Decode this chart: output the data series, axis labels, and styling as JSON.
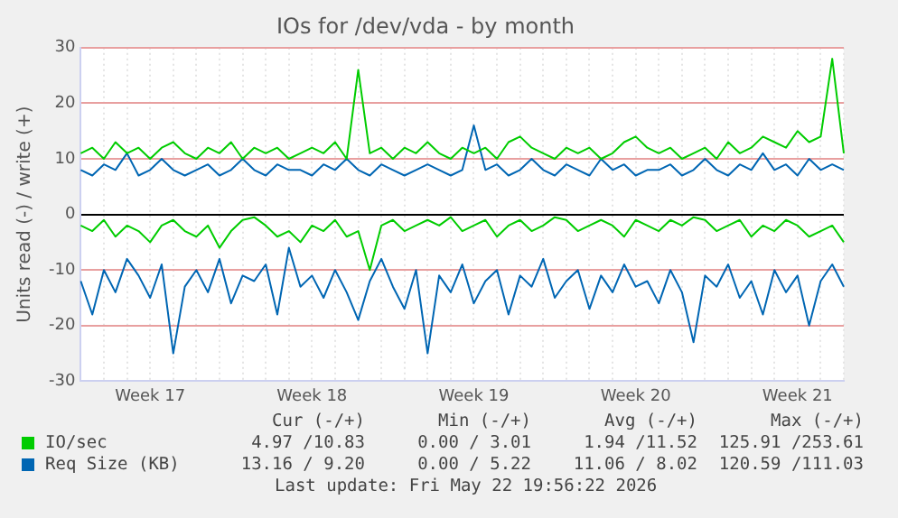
{
  "chart_data": {
    "type": "line",
    "title": "IOs for /dev/vda - by month",
    "ylabel": "Units read (-) / write (+)",
    "categories": [
      null,
      null,
      null,
      null,
      null,
      null,
      "Week 17",
      null,
      null,
      null,
      null,
      null,
      null,
      null,
      null,
      null,
      null,
      null,
      null,
      null,
      "Week 18",
      null,
      null,
      null,
      null,
      null,
      null,
      null,
      null,
      null,
      null,
      null,
      null,
      null,
      "Week 19",
      null,
      null,
      null,
      null,
      null,
      null,
      null,
      null,
      null,
      null,
      null,
      null,
      null,
      "Week 20",
      null,
      null,
      null,
      null,
      null,
      null,
      null,
      null,
      null,
      null,
      null,
      null,
      null,
      "Week 21",
      null,
      null,
      null,
      null
    ],
    "ylim": [
      -30,
      30
    ],
    "yticks": [
      -30,
      -20,
      -10,
      0,
      10,
      20,
      30
    ],
    "grid": true,
    "legend": "bottom",
    "series": [
      {
        "name": "IO/sec",
        "color": "#00cc00",
        "values": [
          11,
          12,
          10,
          13,
          11,
          12,
          10,
          12,
          13,
          11,
          10,
          12,
          11,
          13,
          10,
          12,
          11,
          12,
          10,
          11,
          12,
          11,
          13,
          10,
          26,
          11,
          12,
          10,
          12,
          11,
          13,
          11,
          10,
          12,
          11,
          12,
          10,
          13,
          14,
          12,
          11,
          10,
          12,
          11,
          12,
          10,
          11,
          13,
          14,
          12,
          11,
          12,
          10,
          11,
          12,
          10,
          13,
          11,
          12,
          14,
          13,
          12,
          15,
          13,
          14,
          28,
          11
        ]
      },
      {
        "color": "#00cc00",
        "values": [
          -2,
          -3,
          -1,
          -4,
          -2,
          -3,
          -5,
          -2,
          -1,
          -3,
          -4,
          -2,
          -6,
          -3,
          -1,
          -0.5,
          -2,
          -4,
          -3,
          -5,
          -2,
          -3,
          -1,
          -4,
          -3,
          -10,
          -2,
          -1,
          -3,
          -2,
          -1,
          -2,
          -0.5,
          -3,
          -2,
          -1,
          -4,
          -2,
          -1,
          -3,
          -2,
          -0.5,
          -1,
          -3,
          -2,
          -1,
          -2,
          -4,
          -1,
          -2,
          -3,
          -1,
          -2,
          -0.5,
          -1,
          -3,
          -2,
          -1,
          -4,
          -2,
          -3,
          -1,
          -2,
          -4,
          -3,
          -2,
          -5
        ]
      },
      {
        "name": "Req Size (KB)",
        "color": "#0066b3",
        "values": [
          8,
          7,
          9,
          8,
          11,
          7,
          8,
          10,
          8,
          7,
          8,
          9,
          7,
          8,
          10,
          8,
          7,
          9,
          8,
          8,
          7,
          9,
          8,
          10,
          8,
          7,
          9,
          8,
          7,
          8,
          9,
          8,
          7,
          8,
          16,
          8,
          9,
          7,
          8,
          10,
          8,
          7,
          9,
          8,
          7,
          10,
          8,
          9,
          7,
          8,
          8,
          9,
          7,
          8,
          10,
          8,
          7,
          9,
          8,
          11,
          8,
          9,
          7,
          10,
          8,
          9,
          8
        ]
      },
      {
        "color": "#0066b3",
        "values": [
          -12,
          -18,
          -10,
          -14,
          -8,
          -11,
          -15,
          -9,
          -25,
          -13,
          -10,
          -14,
          -8,
          -16,
          -11,
          -12,
          -9,
          -18,
          -6,
          -13,
          -11,
          -15,
          -10,
          -14,
          -19,
          -12,
          -8,
          -13,
          -17,
          -10,
          -25,
          -11,
          -14,
          -9,
          -16,
          -12,
          -10,
          -18,
          -11,
          -13,
          -8,
          -15,
          -12,
          -10,
          -17,
          -11,
          -14,
          -9,
          -13,
          -12,
          -16,
          -10,
          -14,
          -23,
          -11,
          -13,
          -9,
          -15,
          -12,
          -18,
          -10,
          -14,
          -11,
          -20,
          -12,
          -9,
          -13
        ]
      }
    ],
    "annotations": [
      "Cur (-/+)",
      "Min (-/+)",
      "Avg (-/+)",
      "Max (-/+)",
      "4.97 /10.83",
      "0.00 / 3.01",
      "1.94 /11.52",
      "125.91 /253.61",
      "13.16 / 9.20",
      "0.00 / 5.22",
      "11.06 / 8.02",
      "120.59 /111.03",
      "Last update: Fri May 22 19:56:22 2026"
    ]
  }
}
